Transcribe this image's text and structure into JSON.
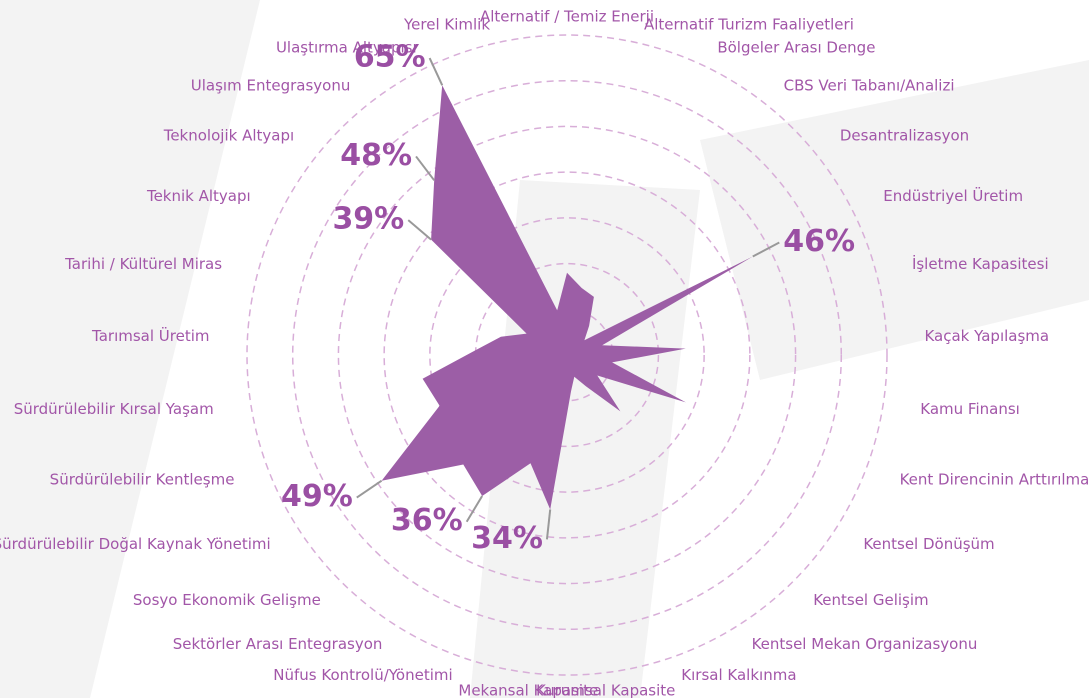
{
  "chart_data": {
    "type": "radar",
    "categories": [
      "Alternatif / Temiz Enerji",
      "Alternatif Turizm Faaliyetleri",
      "Bölgeler Arası Denge",
      "CBS Veri Tabanı/Analizi",
      "Desantralizasyon",
      "Endüstriyel Üretim",
      "İşletme Kapasitesi",
      "Kaçak Yapılaşma",
      "Kamu Finansı",
      "Kent Direncinin Arttırılması",
      "Kentsel Dönüşüm",
      "Kentsel Gelişim",
      "Kentsel Mekan Organizasyonu",
      "Kırsal Kalkınma",
      "Kurumsal Kapasite",
      "Mekansal Kapasite",
      "Nüfus Kontrolü/Yönetimi",
      "Sektörler Arası Entegrasyon",
      "Sosyo Ekonomik Gelişme",
      "Sürdürülebilir Doğal Kaynak Yönetimi",
      "Sürdürülebilir Kentleşme",
      "Sürdürülebilir Kırsal Yaşam",
      "Tarımsal Üretim",
      "Tarihi / Kültürel Miras",
      "Teknik Altyapı",
      "Teknolojik Altyapı",
      "Ulaşım Entegrasyonu",
      "Ulaştırma Altyapısı",
      "Yerel Kimlik"
    ],
    "values": [
      18,
      15,
      14,
      8,
      5,
      46,
      8,
      26,
      10,
      28,
      8,
      17,
      8,
      5,
      8,
      34,
      25,
      36,
      33,
      49,
      30,
      32,
      20,
      15,
      10,
      39,
      48,
      65,
      10
    ],
    "value_labels": [
      null,
      null,
      null,
      null,
      null,
      "46%",
      null,
      null,
      null,
      null,
      null,
      null,
      null,
      null,
      null,
      "34%",
      null,
      "36%",
      null,
      "49%",
      null,
      null,
      null,
      null,
      null,
      "39%",
      "48%",
      "65%",
      null
    ],
    "color": "#9c5ea6",
    "rlim": [
      0,
      70
    ],
    "rticks": [
      10,
      20,
      30,
      40,
      50,
      60,
      70
    ],
    "grid": true
  }
}
